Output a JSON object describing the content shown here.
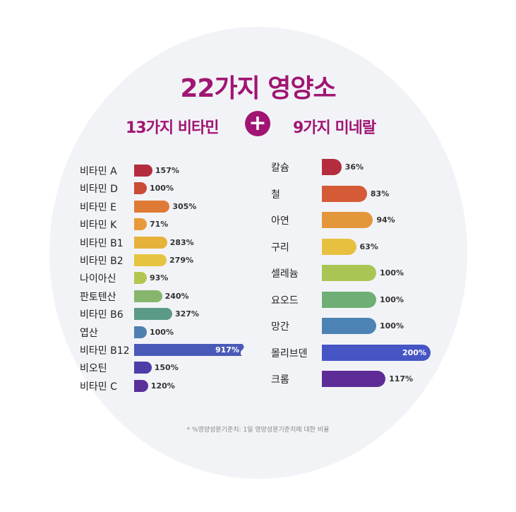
{
  "title": "22가지 영양소",
  "vitamins_heading": "13가지 비타민",
  "plus_symbol": "+",
  "minerals_heading": "9가지 미네랄",
  "footnote": "* %영양성분기준치: 1일 영양성분기준치에 대한 비율",
  "colors": {
    "accent": "#a01573",
    "background": "#f2f3f7"
  },
  "chart_data": [
    {
      "type": "bar",
      "orientation": "horizontal",
      "categories": [
        "비타민 A",
        "비타민 D",
        "비타민 E",
        "비타민 K",
        "비타민 B1",
        "비타민 B2",
        "나이아신",
        "판토텐산",
        "비타민 B6",
        "엽산",
        "비타민 B12",
        "비오틴",
        "비타민 C"
      ],
      "values": [
        157,
        100,
        305,
        71,
        283,
        279,
        93,
        240,
        327,
        100,
        917,
        150,
        120
      ],
      "labels": [
        "157%",
        "100%",
        "305%",
        "71%",
        "283%",
        "279%",
        "93%",
        "240%",
        "327%",
        "100%",
        "917%",
        "150%",
        "120%"
      ],
      "colors": [
        "#b52c3f",
        "#c94a35",
        "#df7a36",
        "#e89a3a",
        "#e7b23c",
        "#e6c440",
        "#b3c652",
        "#86b66c",
        "#5a9a86",
        "#4f7fb1",
        "#4859b8",
        "#4a3ea8",
        "#5a2f9a"
      ],
      "axis_break": "917%",
      "title": "",
      "xlabel": "",
      "ylabel": ""
    },
    {
      "type": "bar",
      "orientation": "horizontal",
      "categories": [
        "칼슘",
        "철",
        "아연",
        "구리",
        "셀레늄",
        "요오드",
        "망간",
        "몰리브덴",
        "크롬"
      ],
      "values": [
        36,
        83,
        94,
        63,
        100,
        100,
        100,
        200,
        117
      ],
      "labels": [
        "36%",
        "83%",
        "94%",
        "63%",
        "100%",
        "100%",
        "100%",
        "200%",
        "117%"
      ],
      "colors": [
        "#b52c3f",
        "#d45b35",
        "#e3963a",
        "#e8c040",
        "#a9c654",
        "#6faf76",
        "#4d83b4",
        "#4655c4",
        "#5d2c96"
      ],
      "title": "",
      "xlabel": "",
      "ylabel": ""
    }
  ]
}
